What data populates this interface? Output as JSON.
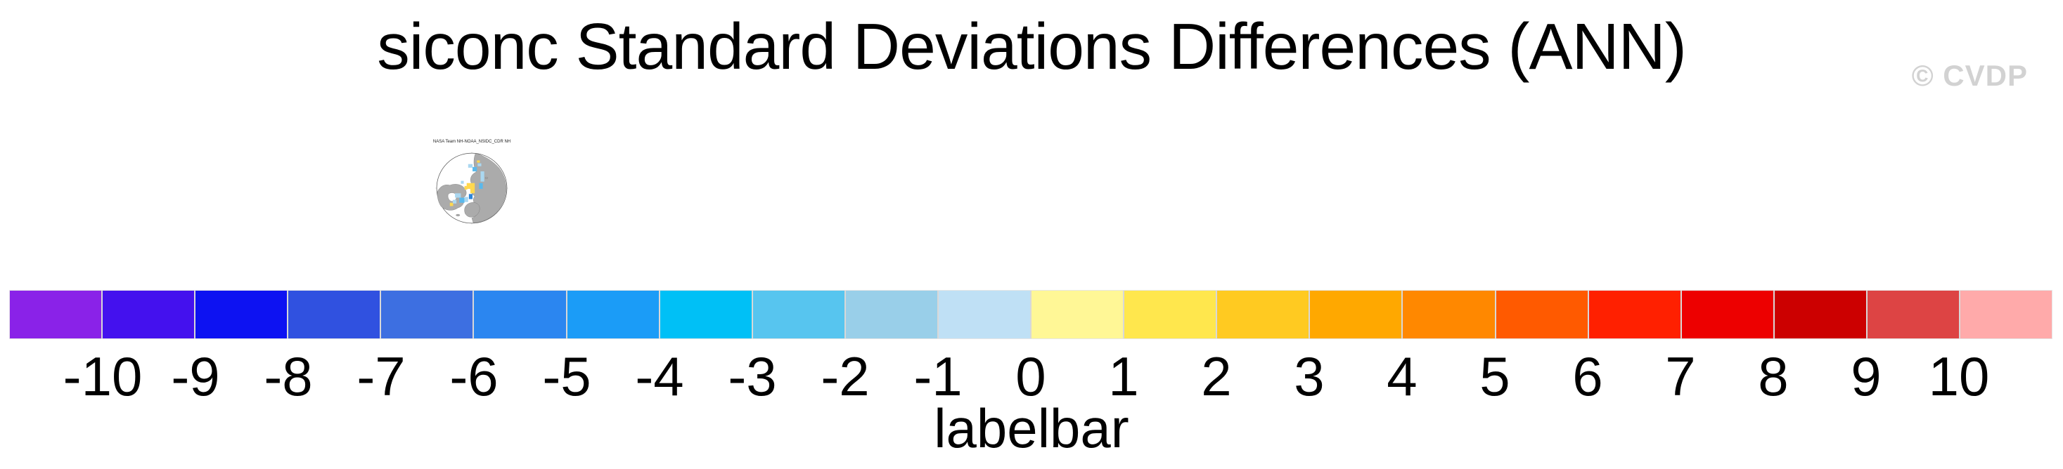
{
  "header": {
    "title": "siconc Standard Deviations Differences (ANN)",
    "watermark": "© CVDP"
  },
  "map_thumbnail": {
    "title": "NASA Team NH-NOAA_NSIDC_CDR NH",
    "projection": "northern-hemisphere-polar-stereographic",
    "land_color": "#ababab",
    "ocean_color": "#ffffff",
    "anomaly_colors": {
      "yellow": "#ffd84f",
      "light_blue": "#aad7f0",
      "mid_blue": "#5ab9ec",
      "dark_blue": "#2f86d8"
    }
  },
  "chart_data": {
    "type": "heatmap",
    "title": "siconc Standard Deviations Differences (ANN)",
    "caption": "labelbar",
    "legend_position": "bottom",
    "colorbar": {
      "levels": [
        -10,
        -9,
        -8,
        -7,
        -6,
        -5,
        -4,
        -3,
        -2,
        -1,
        0,
        1,
        2,
        3,
        4,
        5,
        6,
        7,
        8,
        9,
        10
      ],
      "tick_labels": [
        "-10",
        "-9",
        "-8",
        "-7",
        "-6",
        "-5",
        "-4",
        "-3",
        "-2",
        "-1",
        "0",
        "1",
        "2",
        "3",
        "4",
        "5",
        "6",
        "7",
        "8",
        "9",
        "10"
      ],
      "cell_colors": [
        "#8a22e8",
        "#4411ee",
        "#0d12f2",
        "#3051e0",
        "#3d6fe1",
        "#2b86f0",
        "#1b9cf7",
        "#00c0f6",
        "#57c5ef",
        "#99cfe9",
        "#bfe0f5",
        "#fff796",
        "#ffe74d",
        "#ffca21",
        "#ffa800",
        "#ff8800",
        "#ff5a00",
        "#ff2000",
        "#ed0000",
        "#cc0000",
        "#dd4444",
        "#ffaaaa"
      ]
    }
  }
}
